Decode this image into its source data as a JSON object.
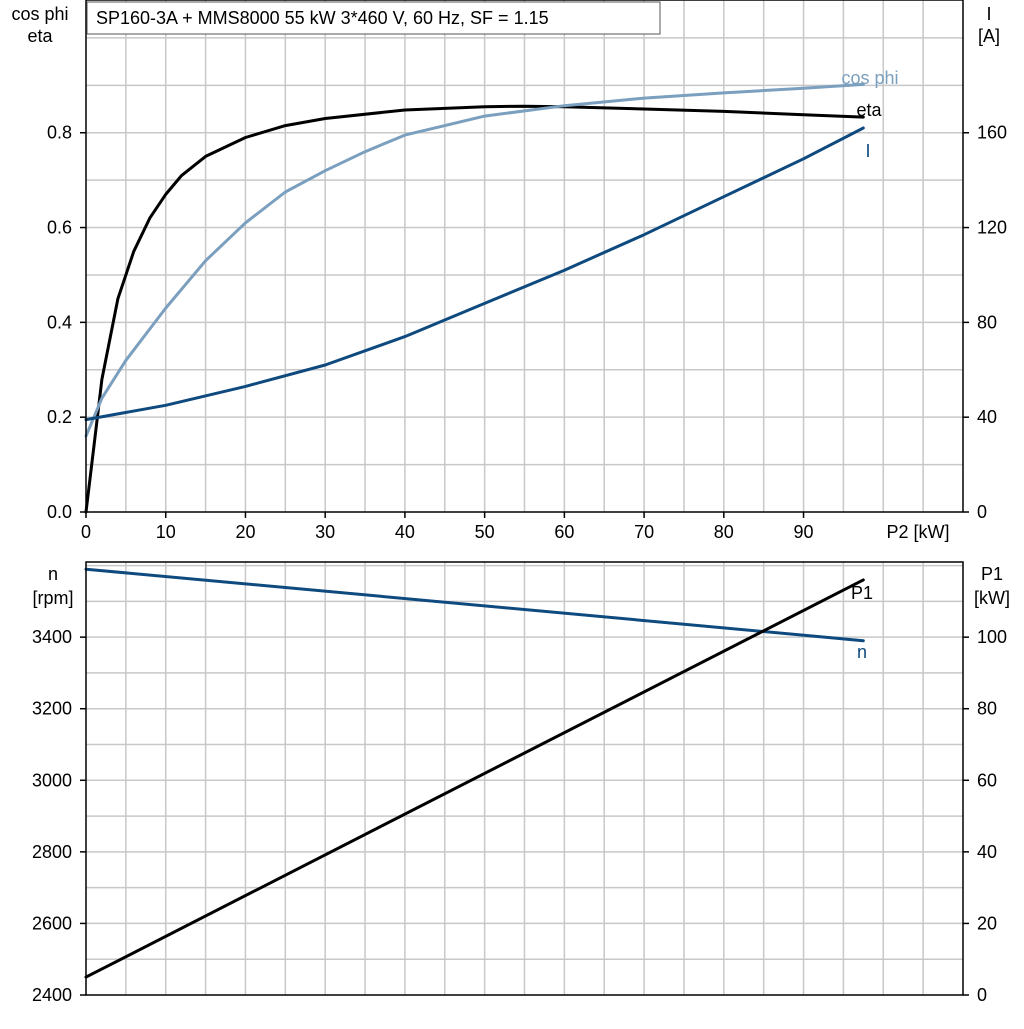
{
  "title": "SP160-3A + MMS8000   55 kW   3*460 V, 60 Hz, SF = 1.15",
  "colors": {
    "cos_phi": "#7b9fbe",
    "eta": "#000000",
    "I": "#0f4a7f",
    "n": "#0f4a7f",
    "P1": "#000000",
    "grid": "#c8c8c8"
  },
  "chart_data": [
    {
      "type": "line",
      "x_label": "P2 [kW]",
      "y_left_label": [
        "cos phi",
        "eta"
      ],
      "y_right_label": [
        "I",
        "[A]"
      ],
      "x_range": [
        0,
        110
      ],
      "x_ticks": [
        0,
        10,
        20,
        30,
        40,
        50,
        60,
        70,
        80,
        90
      ],
      "y_left_range": [
        0,
        1.08
      ],
      "y_left_ticks": [
        "0.0",
        "0.2",
        "0.4",
        "0.6",
        "0.8"
      ],
      "y_right_range": [
        0,
        216
      ],
      "y_right_ticks": [
        "0",
        "40",
        "80",
        "120",
        "160"
      ],
      "grid": true,
      "series": [
        {
          "name": "eta",
          "axis": "left",
          "x": [
            0,
            1,
            2,
            4,
            6,
            8,
            10,
            12,
            15,
            20,
            25,
            30,
            40,
            50,
            55,
            60,
            70,
            80,
            90,
            97.5
          ],
          "y": [
            0,
            0.14,
            0.28,
            0.45,
            0.55,
            0.62,
            0.67,
            0.71,
            0.75,
            0.79,
            0.815,
            0.83,
            0.848,
            0.855,
            0.856,
            0.855,
            0.85,
            0.845,
            0.838,
            0.833
          ]
        },
        {
          "name": "cos phi",
          "axis": "left",
          "x": [
            0,
            2,
            5,
            10,
            15,
            20,
            25,
            30,
            35,
            40,
            50,
            60,
            70,
            80,
            90,
            97.5
          ],
          "y": [
            0.16,
            0.24,
            0.32,
            0.43,
            0.53,
            0.61,
            0.675,
            0.72,
            0.76,
            0.795,
            0.835,
            0.857,
            0.873,
            0.884,
            0.894,
            0.902
          ]
        },
        {
          "name": "I",
          "axis": "right",
          "x": [
            0,
            10,
            20,
            30,
            40,
            50,
            60,
            70,
            80,
            90,
            97.5
          ],
          "y": [
            39,
            45,
            53,
            62,
            74,
            88,
            102,
            117,
            133,
            149,
            162
          ]
        }
      ]
    },
    {
      "type": "line",
      "x_range": [
        0,
        110
      ],
      "y_left_label": [
        "n",
        "[rpm]"
      ],
      "y_right_label": [
        "P1",
        "[kW]"
      ],
      "y_left_range": [
        2400,
        3610
      ],
      "y_left_ticks": [
        "2400",
        "2600",
        "2800",
        "3000",
        "3200",
        "3400"
      ],
      "y_right_range": [
        0,
        121
      ],
      "y_right_ticks": [
        "0",
        "20",
        "40",
        "60",
        "80",
        "100"
      ],
      "grid": true,
      "series": [
        {
          "name": "n",
          "axis": "left",
          "x": [
            0,
            97.5
          ],
          "y": [
            3590,
            3390
          ]
        },
        {
          "name": "P1",
          "axis": "right",
          "x": [
            0,
            97.5
          ],
          "y": [
            5,
            116
          ]
        }
      ]
    }
  ]
}
